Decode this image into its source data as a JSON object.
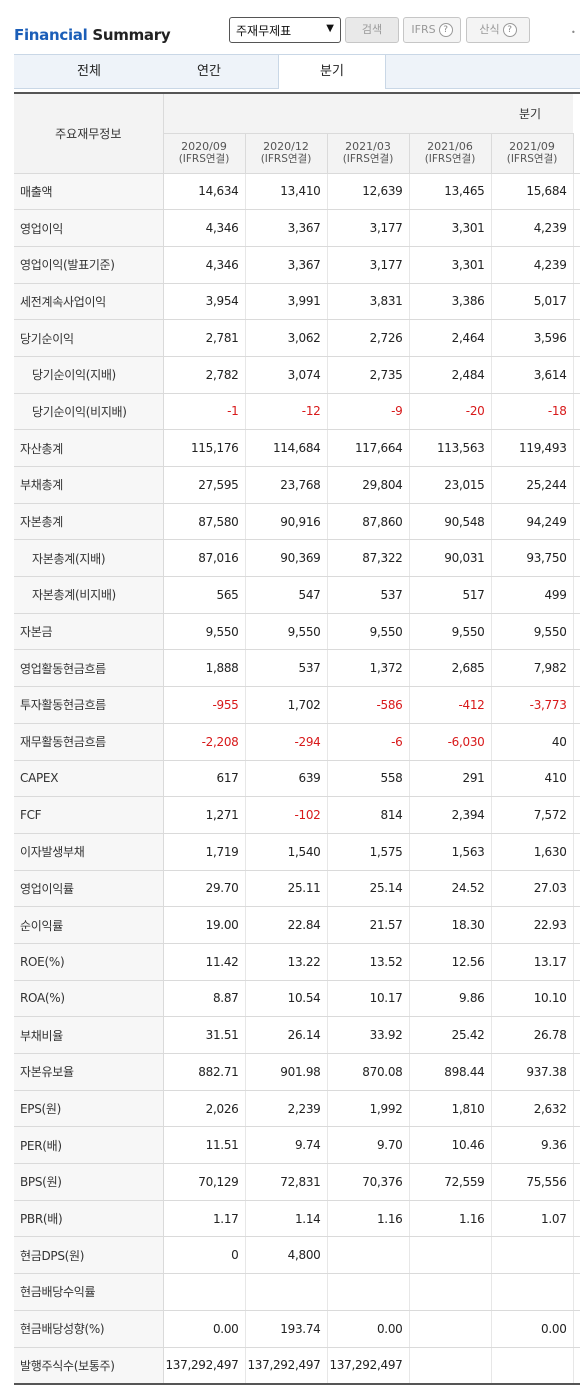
{
  "header": {
    "title_accent": "Financial",
    "title_rest": " Summary",
    "select_value": "주재무제표",
    "search_label": "검색",
    "ifrs_label": "IFRS",
    "calc_label": "산식",
    "help_glyph": "?"
  },
  "tabs": [
    {
      "label": "전체",
      "active": false
    },
    {
      "label": "연간",
      "active": false
    },
    {
      "label": "분기",
      "active": true
    }
  ],
  "table": {
    "row_header": "주요재무정보",
    "group_label": "분기",
    "periods": [
      {
        "date": "2020/09",
        "basis": "(IFRS연결)"
      },
      {
        "date": "2020/12",
        "basis": "(IFRS연결)"
      },
      {
        "date": "2021/03",
        "basis": "(IFRS연결)"
      },
      {
        "date": "2021/06",
        "basis": "(IFRS연결)"
      },
      {
        "date": "2021/09",
        "basis": "(IFRS연결)"
      }
    ],
    "rows": [
      {
        "label": "매출액",
        "indent": false,
        "values": [
          "14,634",
          "13,410",
          "12,639",
          "13,465",
          "15,684"
        ]
      },
      {
        "label": "영업이익",
        "indent": false,
        "values": [
          "4,346",
          "3,367",
          "3,177",
          "3,301",
          "4,239"
        ]
      },
      {
        "label": "영업이익(발표기준)",
        "indent": false,
        "values": [
          "4,346",
          "3,367",
          "3,177",
          "3,301",
          "4,239"
        ]
      },
      {
        "label": "세전계속사업이익",
        "indent": false,
        "values": [
          "3,954",
          "3,991",
          "3,831",
          "3,386",
          "5,017"
        ]
      },
      {
        "label": "당기순이익",
        "indent": false,
        "values": [
          "2,781",
          "3,062",
          "2,726",
          "2,464",
          "3,596"
        ]
      },
      {
        "label": "당기순이익(지배)",
        "indent": true,
        "values": [
          "2,782",
          "3,074",
          "2,735",
          "2,484",
          "3,614"
        ]
      },
      {
        "label": "당기순이익(비지배)",
        "indent": true,
        "values": [
          "-1",
          "-12",
          "-9",
          "-20",
          "-18"
        ]
      },
      {
        "label": "자산총계",
        "indent": false,
        "values": [
          "115,176",
          "114,684",
          "117,664",
          "113,563",
          "119,493"
        ]
      },
      {
        "label": "부채총계",
        "indent": false,
        "values": [
          "27,595",
          "23,768",
          "29,804",
          "23,015",
          "25,244"
        ]
      },
      {
        "label": "자본총계",
        "indent": false,
        "values": [
          "87,580",
          "90,916",
          "87,860",
          "90,548",
          "94,249"
        ]
      },
      {
        "label": "자본총계(지배)",
        "indent": true,
        "values": [
          "87,016",
          "90,369",
          "87,322",
          "90,031",
          "93,750"
        ]
      },
      {
        "label": "자본총계(비지배)",
        "indent": true,
        "values": [
          "565",
          "547",
          "537",
          "517",
          "499"
        ]
      },
      {
        "label": "자본금",
        "indent": false,
        "values": [
          "9,550",
          "9,550",
          "9,550",
          "9,550",
          "9,550"
        ]
      },
      {
        "label": "영업활동현금흐름",
        "indent": false,
        "values": [
          "1,888",
          "537",
          "1,372",
          "2,685",
          "7,982"
        ]
      },
      {
        "label": "투자활동현금흐름",
        "indent": false,
        "values": [
          "-955",
          "1,702",
          "-586",
          "-412",
          "-3,773"
        ]
      },
      {
        "label": "재무활동현금흐름",
        "indent": false,
        "values": [
          "-2,208",
          "-294",
          "-6",
          "-6,030",
          "40"
        ]
      },
      {
        "label": "CAPEX",
        "indent": false,
        "values": [
          "617",
          "639",
          "558",
          "291",
          "410"
        ]
      },
      {
        "label": "FCF",
        "indent": false,
        "values": [
          "1,271",
          "-102",
          "814",
          "2,394",
          "7,572"
        ]
      },
      {
        "label": "이자발생부채",
        "indent": false,
        "values": [
          "1,719",
          "1,540",
          "1,575",
          "1,563",
          "1,630"
        ]
      },
      {
        "label": "영업이익률",
        "indent": false,
        "values": [
          "29.70",
          "25.11",
          "25.14",
          "24.52",
          "27.03"
        ]
      },
      {
        "label": "순이익률",
        "indent": false,
        "values": [
          "19.00",
          "22.84",
          "21.57",
          "18.30",
          "22.93"
        ]
      },
      {
        "label": "ROE(%)",
        "indent": false,
        "values": [
          "11.42",
          "13.22",
          "13.52",
          "12.56",
          "13.17"
        ]
      },
      {
        "label": "ROA(%)",
        "indent": false,
        "values": [
          "8.87",
          "10.54",
          "10.17",
          "9.86",
          "10.10"
        ]
      },
      {
        "label": "부채비율",
        "indent": false,
        "values": [
          "31.51",
          "26.14",
          "33.92",
          "25.42",
          "26.78"
        ]
      },
      {
        "label": "자본유보율",
        "indent": false,
        "values": [
          "882.71",
          "901.98",
          "870.08",
          "898.44",
          "937.38"
        ]
      },
      {
        "label": "EPS(원)",
        "indent": false,
        "values": [
          "2,026",
          "2,239",
          "1,992",
          "1,810",
          "2,632"
        ]
      },
      {
        "label": "PER(배)",
        "indent": false,
        "values": [
          "11.51",
          "9.74",
          "9.70",
          "10.46",
          "9.36"
        ]
      },
      {
        "label": "BPS(원)",
        "indent": false,
        "values": [
          "70,129",
          "72,831",
          "70,376",
          "72,559",
          "75,556"
        ]
      },
      {
        "label": "PBR(배)",
        "indent": false,
        "values": [
          "1.17",
          "1.14",
          "1.16",
          "1.16",
          "1.07"
        ]
      },
      {
        "label": "현금DPS(원)",
        "indent": false,
        "values": [
          "0",
          "4,800",
          "",
          "",
          ""
        ]
      },
      {
        "label": "현금배당수익률",
        "indent": false,
        "values": [
          "",
          "",
          "",
          "",
          ""
        ]
      },
      {
        "label": "현금배당성향(%)",
        "indent": false,
        "values": [
          "0.00",
          "193.74",
          "0.00",
          "",
          "0.00"
        ]
      },
      {
        "label": "발행주식수(보통주)",
        "indent": false,
        "values": [
          "137,292,497",
          "137,292,497",
          "137,292,497",
          "",
          ""
        ]
      }
    ]
  }
}
